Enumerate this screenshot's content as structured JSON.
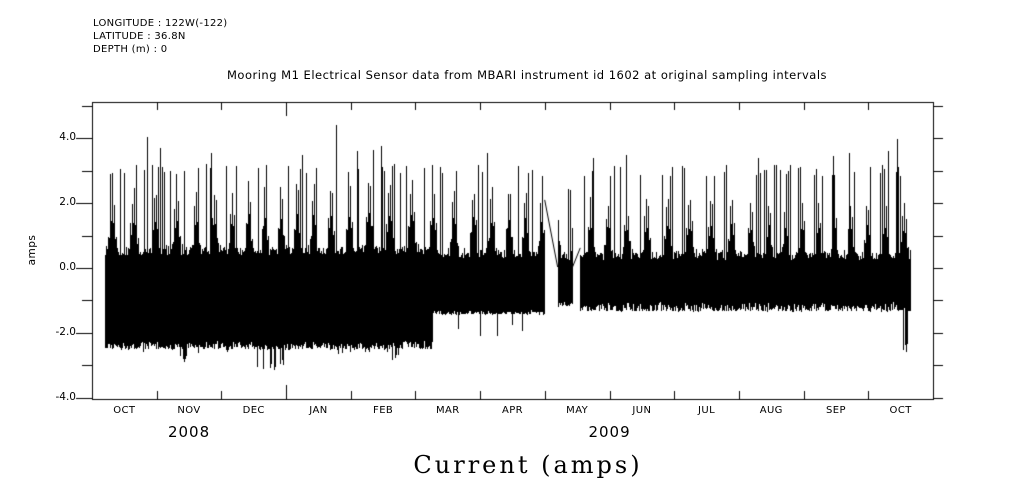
{
  "header": {
    "longitude": "LONGITUDE : 122W(-122)",
    "latitude": "LATITUDE : 36.8N",
    "depth": "DEPTH (m) : 0"
  },
  "title": "Mooring M1 Electrical Sensor data from MBARI instrument id 1602 at original sampling intervals",
  "caption": "Current (amps)",
  "chart_data": {
    "type": "line",
    "title": "Mooring M1 Electrical Sensor data from MBARI instrument id 1602 at original sampling intervals",
    "xlabel": "Current (amps)",
    "ylabel": "amps",
    "background": "#ffffff",
    "stroke_color": "#000000",
    "grid": false,
    "y_axis": {
      "range": [
        -4.0,
        5.1
      ],
      "minor_tick_step": 1.0,
      "major_ticks": [
        {
          "value": 4,
          "label": "4.0"
        },
        {
          "value": 2,
          "label": "2.0"
        },
        {
          "value": 0,
          "label": "0.0"
        },
        {
          "value": -2,
          "label": "-2.0"
        },
        {
          "value": -4,
          "label": "-4.0"
        }
      ]
    },
    "x_axis": {
      "start": "2008-10-01",
      "end": "2009-11-01",
      "month_labels": [
        "OCT",
        "NOV",
        "DEC",
        "JAN",
        "FEB",
        "MAR",
        "APR",
        "MAY",
        "JUN",
        "JUL",
        "AUG",
        "SEP",
        "OCT"
      ],
      "year_boundary_tick_index": 3,
      "year_labels": [
        {
          "text": "2008",
          "month_position": 1.5
        },
        {
          "text": "2009",
          "month_position": 8.0
        }
      ]
    },
    "series": {
      "name": "electrical current",
      "units": "amps",
      "data_start_month": 0.19,
      "data_end_month": 12.65,
      "segments": [
        {
          "from_month": 0.19,
          "to_month": 2.3,
          "lower": -2.52,
          "lower_solid": -2.25,
          "upper_solid": 0.4,
          "bump_max": 2.35,
          "comb_top": 3.05
        },
        {
          "from_month": 2.3,
          "to_month": 5.27,
          "lower": -2.52,
          "lower_solid": -2.25,
          "upper_solid": 0.4,
          "bump_max": 2.6,
          "comb_top": 3.1
        },
        {
          "from_month": 5.27,
          "to_month": 6.99,
          "lower": -1.45,
          "lower_solid": -1.3,
          "upper_solid": 0.3,
          "bump_max": 2.45,
          "comb_top": 3.0
        },
        {
          "from_month": 7.19,
          "to_month": 7.42,
          "lower": -1.2,
          "lower_solid": -1.0,
          "upper_solid": 0.2,
          "bump_max": 1.6,
          "comb_top": 2.55
        },
        {
          "from_month": 7.54,
          "to_month": 12.65,
          "lower": -1.35,
          "lower_solid": -1.05,
          "upper_solid": 0.25,
          "bump_max": 2.05,
          "comb_top": 3.0
        }
      ],
      "gap_lines": [
        {
          "from_month": 6.99,
          "from_value": 2.1,
          "to_month": 7.19,
          "to_value": 0.03
        },
        {
          "from_month": 7.42,
          "from_value": 0.03,
          "to_month": 7.54,
          "to_value": 0.62
        }
      ],
      "negative_spike_clusters": [
        {
          "from_month": 0.2,
          "to_month": 5.2,
          "depth": -2.65,
          "density": 0.05
        },
        {
          "from_month": 1.18,
          "to_month": 1.55,
          "depth": -2.9,
          "density": 0.3
        },
        {
          "from_month": 2.55,
          "to_month": 3.05,
          "depth": -3.15,
          "density": 0.32
        },
        {
          "from_month": 3.2,
          "to_month": 3.45,
          "depth": -2.7,
          "density": 0.12
        },
        {
          "from_month": 3.85,
          "to_month": 4.3,
          "depth": -2.6,
          "density": 0.15
        },
        {
          "from_month": 4.6,
          "to_month": 4.82,
          "depth": -2.9,
          "density": 0.3
        },
        {
          "from_month": 5.6,
          "to_month": 6.3,
          "depth": -2.1,
          "density": 0.05
        },
        {
          "from_month": 6.45,
          "to_month": 6.75,
          "depth": -1.95,
          "density": 0.1
        },
        {
          "from_month": 12.53,
          "to_month": 12.62,
          "depth": -2.6,
          "density": 0.4
        }
      ],
      "tall_spikes": [
        {
          "month": 0.85,
          "value": 4.05
        },
        {
          "month": 1.05,
          "value": 3.7
        },
        {
          "month": 1.84,
          "value": 3.55
        },
        {
          "month": 3.25,
          "value": 3.5
        },
        {
          "month": 3.77,
          "value": 4.42
        },
        {
          "month": 4.1,
          "value": 3.6
        },
        {
          "month": 4.35,
          "value": 3.65
        },
        {
          "month": 4.47,
          "value": 3.75
        },
        {
          "month": 6.1,
          "value": 3.55
        },
        {
          "month": 7.75,
          "value": 3.4
        },
        {
          "month": 8.25,
          "value": 3.5
        },
        {
          "month": 10.3,
          "value": 3.4
        },
        {
          "month": 11.45,
          "value": 3.45
        },
        {
          "month": 11.7,
          "value": 3.55
        },
        {
          "month": 12.3,
          "value": 3.6
        },
        {
          "month": 12.44,
          "value": 3.98
        }
      ]
    }
  }
}
